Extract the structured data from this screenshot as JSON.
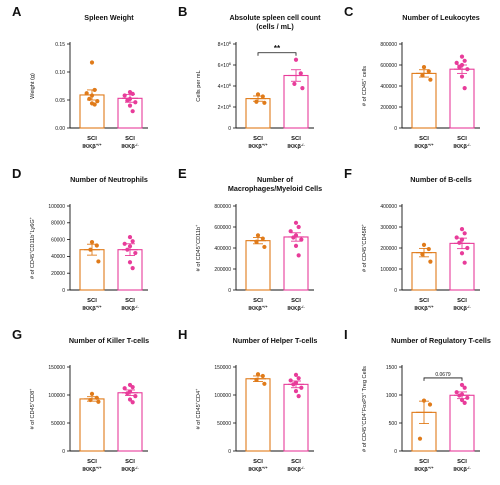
{
  "colors": {
    "wt": "#e07b1a",
    "ko": "#e83c9a",
    "axis": "#111111"
  },
  "categories": [
    {
      "line1": "SCI",
      "pre": "IKKβ",
      "sup": "+/+"
    },
    {
      "line1": "SCI",
      "pre": "IKKβ",
      "sup": "-/-"
    }
  ],
  "chart_data": [
    {
      "type": "bar",
      "panel": "A",
      "title": [
        "Spleen Weight"
      ],
      "ylabel": "Weight (g)",
      "ylim": [
        0,
        0.15
      ],
      "yticks": [
        0,
        0.05,
        0.1,
        0.15
      ],
      "ytick_labels": [
        "0.00",
        "0.05",
        "0.10",
        "0.15"
      ],
      "series": [
        {
          "name": "SCI IKKβ+/+",
          "mean": 0.059,
          "sem": 0.009,
          "points": [
            0.117,
            0.068,
            0.062,
            0.058,
            0.052,
            0.048,
            0.044,
            0.042
          ]
        },
        {
          "name": "SCI IKKβ-/-",
          "mean": 0.053,
          "sem": 0.007,
          "points": [
            0.064,
            0.061,
            0.058,
            0.052,
            0.049,
            0.046,
            0.04,
            0.03
          ]
        }
      ]
    },
    {
      "type": "bar",
      "panel": "B",
      "title": [
        "Absolute spleen cell count",
        "(cells / mL)"
      ],
      "ylabel": "Cells per mL",
      "ylim": [
        0,
        8000000
      ],
      "yticks": [
        0,
        2000000,
        4000000,
        6000000,
        8000000
      ],
      "ytick_labels": [
        [
          "0",
          ""
        ],
        [
          "2×10",
          "6"
        ],
        [
          "4×10",
          "6"
        ],
        [
          "6×10",
          "6"
        ],
        [
          "8×10",
          "6"
        ]
      ],
      "significance": {
        "label": "**"
      },
      "series": [
        {
          "name": "SCI IKKβ+/+",
          "mean": 2800000,
          "sem": 250000,
          "points": [
            3200000,
            3000000,
            2500000,
            2400000
          ]
        },
        {
          "name": "SCI IKKβ-/-",
          "mean": 5000000,
          "sem": 550000,
          "points": [
            6500000,
            5200000,
            4200000,
            3800000
          ]
        }
      ]
    },
    {
      "type": "bar",
      "panel": "C",
      "title": [
        "Number of Leukocytes"
      ],
      "ylabel": [
        "# of CD45",
        "+",
        " cells"
      ],
      "ylim": [
        0,
        800000
      ],
      "yticks": [
        0,
        200000,
        400000,
        600000,
        800000
      ],
      "ytick_labels": [
        "0",
        "200000",
        "400000",
        "600000",
        "800000"
      ],
      "series": [
        {
          "name": "SCI IKKβ+/+",
          "mean": 520000,
          "sem": 35000,
          "points": [
            580000,
            540000,
            500000,
            460000
          ]
        },
        {
          "name": "SCI IKKβ-/-",
          "mean": 560000,
          "sem": 40000,
          "points": [
            680000,
            640000,
            620000,
            600000,
            580000,
            560000,
            490000,
            380000
          ]
        }
      ]
    },
    {
      "type": "bar",
      "panel": "D",
      "title": [
        "Number of Neutrophils"
      ],
      "ylabel": [
        "# of CD45",
        "+",
        "CD11b",
        "+",
        "Ly6G",
        "+"
      ],
      "ylim": [
        0,
        100000
      ],
      "yticks": [
        0,
        20000,
        40000,
        60000,
        80000,
        100000
      ],
      "ytick_labels": [
        "0",
        "20000",
        "40000",
        "60000",
        "80000",
        "100000"
      ],
      "series": [
        {
          "name": "SCI IKKβ+/+",
          "mean": 48000,
          "sem": 6500,
          "points": [
            57000,
            53000,
            48000,
            34000
          ]
        },
        {
          "name": "SCI IKKβ-/-",
          "mean": 48000,
          "sem": 7000,
          "points": [
            63000,
            58000,
            55000,
            52000,
            48000,
            44000,
            33000,
            26000
          ]
        }
      ]
    },
    {
      "type": "bar",
      "panel": "E",
      "title": [
        "Number of",
        "Macrophages/Myeloid Cells"
      ],
      "ylabel": [
        "# of CD45",
        "+",
        "CD11b",
        "+"
      ],
      "ylim": [
        0,
        800000
      ],
      "yticks": [
        0,
        200000,
        400000,
        600000,
        800000
      ],
      "ytick_labels": [
        "0",
        "200000",
        "400000",
        "600000",
        "800000"
      ],
      "series": [
        {
          "name": "SCI IKKβ+/+",
          "mean": 470000,
          "sem": 30000,
          "points": [
            520000,
            490000,
            460000,
            410000
          ]
        },
        {
          "name": "SCI IKKβ-/-",
          "mean": 505000,
          "sem": 40000,
          "points": [
            640000,
            600000,
            560000,
            520000,
            500000,
            480000,
            420000,
            330000
          ]
        }
      ]
    },
    {
      "type": "bar",
      "panel": "F",
      "title": [
        "Number of B-cells"
      ],
      "ylabel": [
        "# of CD45",
        "+",
        "CD45R",
        "+"
      ],
      "ylim": [
        0,
        400000
      ],
      "yticks": [
        0,
        100000,
        200000,
        300000,
        400000
      ],
      "ytick_labels": [
        "0",
        "100000",
        "200000",
        "300000",
        "400000"
      ],
      "series": [
        {
          "name": "SCI IKKβ+/+",
          "mean": 178000,
          "sem": 20000,
          "points": [
            215000,
            195000,
            170000,
            135000
          ]
        },
        {
          "name": "SCI IKKβ-/-",
          "mean": 222000,
          "sem": 25000,
          "points": [
            290000,
            270000,
            250000,
            240000,
            225000,
            200000,
            175000,
            130000
          ]
        }
      ]
    },
    {
      "type": "bar",
      "panel": "G",
      "title": [
        "Number of Killer T-cells"
      ],
      "ylabel": [
        "# of CD45",
        "+",
        "CD8",
        "+"
      ],
      "ylim": [
        0,
        150000
      ],
      "yticks": [
        0,
        50000,
        100000,
        150000
      ],
      "ytick_labels": [
        "0",
        "50000",
        "100000",
        "150000"
      ],
      "series": [
        {
          "name": "SCI IKKβ+/+",
          "mean": 93000,
          "sem": 4000,
          "points": [
            102000,
            95000,
            91000,
            88000
          ]
        },
        {
          "name": "SCI IKKβ-/-",
          "mean": 104000,
          "sem": 5000,
          "points": [
            118000,
            114000,
            112000,
            106000,
            103000,
            98000,
            92000,
            87000
          ]
        }
      ]
    },
    {
      "type": "bar",
      "panel": "H",
      "title": [
        "Number of Helper T-cells"
      ],
      "ylabel": [
        "# of CD45",
        "+",
        "CD4",
        "+"
      ],
      "ylim": [
        0,
        150000
      ],
      "yticks": [
        0,
        50000,
        100000,
        150000
      ],
      "ytick_labels": [
        "0",
        "50000",
        "100000",
        "150000"
      ],
      "series": [
        {
          "name": "SCI IKKβ+/+",
          "mean": 129000,
          "sem": 5000,
          "points": [
            137000,
            134000,
            127000,
            120000
          ]
        },
        {
          "name": "SCI IKKβ-/-",
          "mean": 119000,
          "sem": 6000,
          "points": [
            136000,
            130000,
            126000,
            122000,
            119000,
            113000,
            107000,
            98000
          ]
        }
      ]
    },
    {
      "type": "bar",
      "panel": "I",
      "title": [
        "Number of Regulatory T-cells"
      ],
      "ylabel": [
        "# of CD45",
        "+",
        "CD4",
        "+",
        "FoxP3",
        "+",
        " Treg Cells"
      ],
      "ylim": [
        0,
        1500
      ],
      "yticks": [
        0,
        500,
        1000,
        1500
      ],
      "ytick_labels": [
        "0",
        "500",
        "1000",
        "1500"
      ],
      "significance": {
        "label": "0.0679"
      },
      "series": [
        {
          "name": "SCI IKKβ+/+",
          "mean": 690,
          "sem": 200,
          "points": [
            900,
            830,
            220
          ]
        },
        {
          "name": "SCI IKKβ-/-",
          "mean": 995,
          "sem": 60,
          "points": [
            1180,
            1130,
            1050,
            1010,
            990,
            950,
            910,
            860
          ]
        }
      ]
    }
  ]
}
